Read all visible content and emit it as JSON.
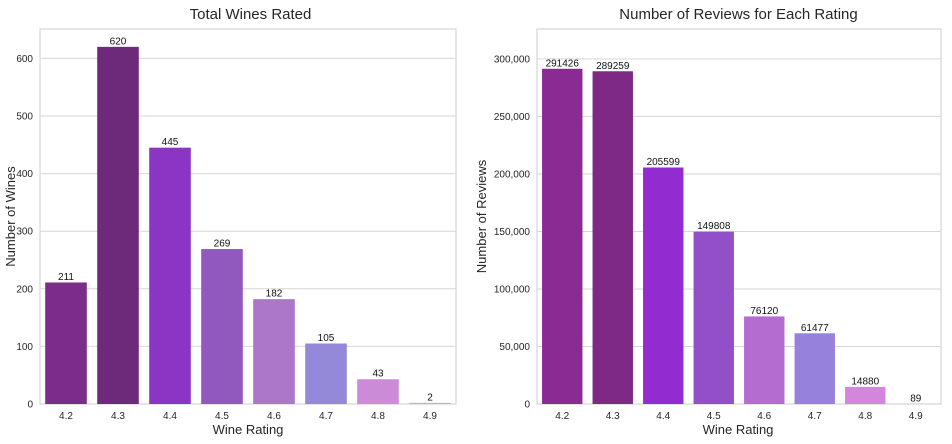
{
  "chart_data": [
    {
      "type": "bar",
      "title": "Total Wines Rated",
      "xlabel": "Wine Rating",
      "ylabel": "Number of Wines",
      "categories": [
        "4.2",
        "4.3",
        "4.4",
        "4.5",
        "4.6",
        "4.7",
        "4.8",
        "4.9"
      ],
      "values": [
        211,
        620,
        445,
        269,
        182,
        105,
        43,
        2
      ],
      "data_labels": [
        "211",
        "620",
        "445",
        "269",
        "182",
        "105",
        "43",
        "2"
      ],
      "ylim": [
        0,
        651
      ],
      "yticks": [
        0,
        100,
        200,
        300,
        400,
        500,
        600
      ],
      "ytick_labels": [
        "0",
        "100",
        "200",
        "300",
        "400",
        "500",
        "600"
      ],
      "grid": true,
      "colors": [
        "#7b2d8b",
        "#6e2a7a",
        "#8a35c4",
        "#9159be",
        "#ad77c8",
        "#9488d8",
        "#cc8bd6",
        "#d4a4dc"
      ]
    },
    {
      "type": "bar",
      "title": "Number of Reviews for Each Rating",
      "xlabel": "Wine Rating",
      "ylabel": "Number of Reviews",
      "categories": [
        "4.2",
        "4.3",
        "4.4",
        "4.5",
        "4.6",
        "4.7",
        "4.8",
        "4.9"
      ],
      "values": [
        291426,
        289259,
        205599,
        149808,
        76120,
        61477,
        14880,
        89
      ],
      "data_labels": [
        "291426",
        "289259",
        "205599",
        "149808",
        "76120",
        "61477",
        "14880",
        "89"
      ],
      "ylim": [
        0,
        326000
      ],
      "yticks": [
        0,
        50000,
        100000,
        150000,
        200000,
        250000,
        300000
      ],
      "ytick_labels": [
        "0",
        "50,000",
        "100,000",
        "150,000",
        "200,000",
        "250,000",
        "300,000"
      ],
      "grid": true,
      "colors": [
        "#8a2a93",
        "#7e2a85",
        "#922cd0",
        "#9150c8",
        "#b56cd0",
        "#9682dc",
        "#d486dc",
        "#d9a6e0"
      ]
    }
  ]
}
